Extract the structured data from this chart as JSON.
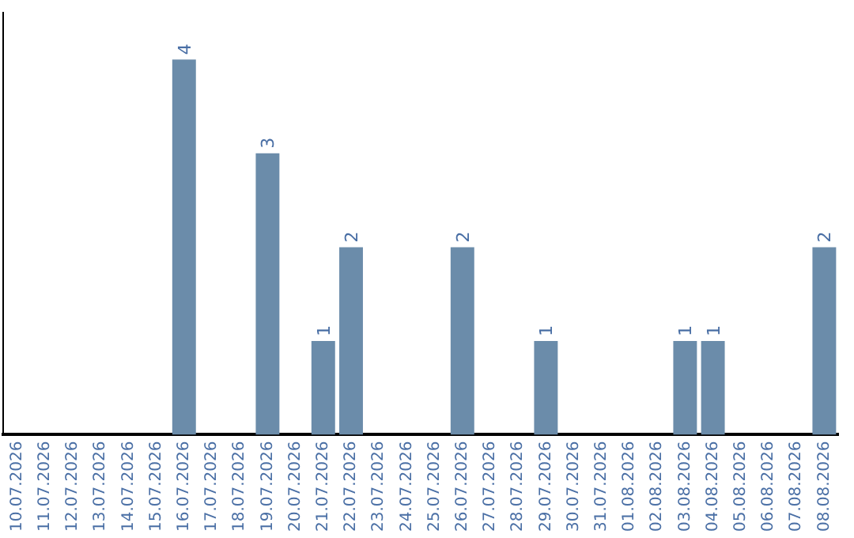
{
  "chart_data": {
    "type": "bar",
    "categories": [
      "10.07.2026",
      "11.07.2026",
      "12.07.2026",
      "13.07.2026",
      "14.07.2026",
      "15.07.2026",
      "16.07.2026",
      "17.07.2026",
      "18.07.2026",
      "19.07.2026",
      "20.07.2026",
      "21.07.2026",
      "22.07.2026",
      "23.07.2026",
      "24.07.2026",
      "25.07.2026",
      "26.07.2026",
      "27.07.2026",
      "28.07.2026",
      "29.07.2026",
      "30.07.2026",
      "31.07.2026",
      "01.08.2026",
      "02.08.2026",
      "03.08.2026",
      "04.08.2026",
      "05.08.2026",
      "06.08.2026",
      "07.08.2026",
      "08.08.2026"
    ],
    "values": [
      0,
      0,
      0,
      0,
      0,
      0,
      4,
      0,
      0,
      3,
      0,
      1,
      2,
      0,
      0,
      0,
      2,
      0,
      0,
      1,
      0,
      0,
      0,
      0,
      1,
      1,
      0,
      0,
      0,
      2
    ],
    "value_labels": [
      null,
      null,
      null,
      null,
      null,
      null,
      "4",
      null,
      null,
      "3",
      null,
      "1",
      "2",
      null,
      null,
      null,
      "2",
      null,
      null,
      "1",
      null,
      null,
      null,
      null,
      "1",
      "1",
      null,
      null,
      null,
      "2"
    ],
    "color": "#6b8caa",
    "grid": false,
    "legend": false,
    "tick_labels": "x"
  }
}
